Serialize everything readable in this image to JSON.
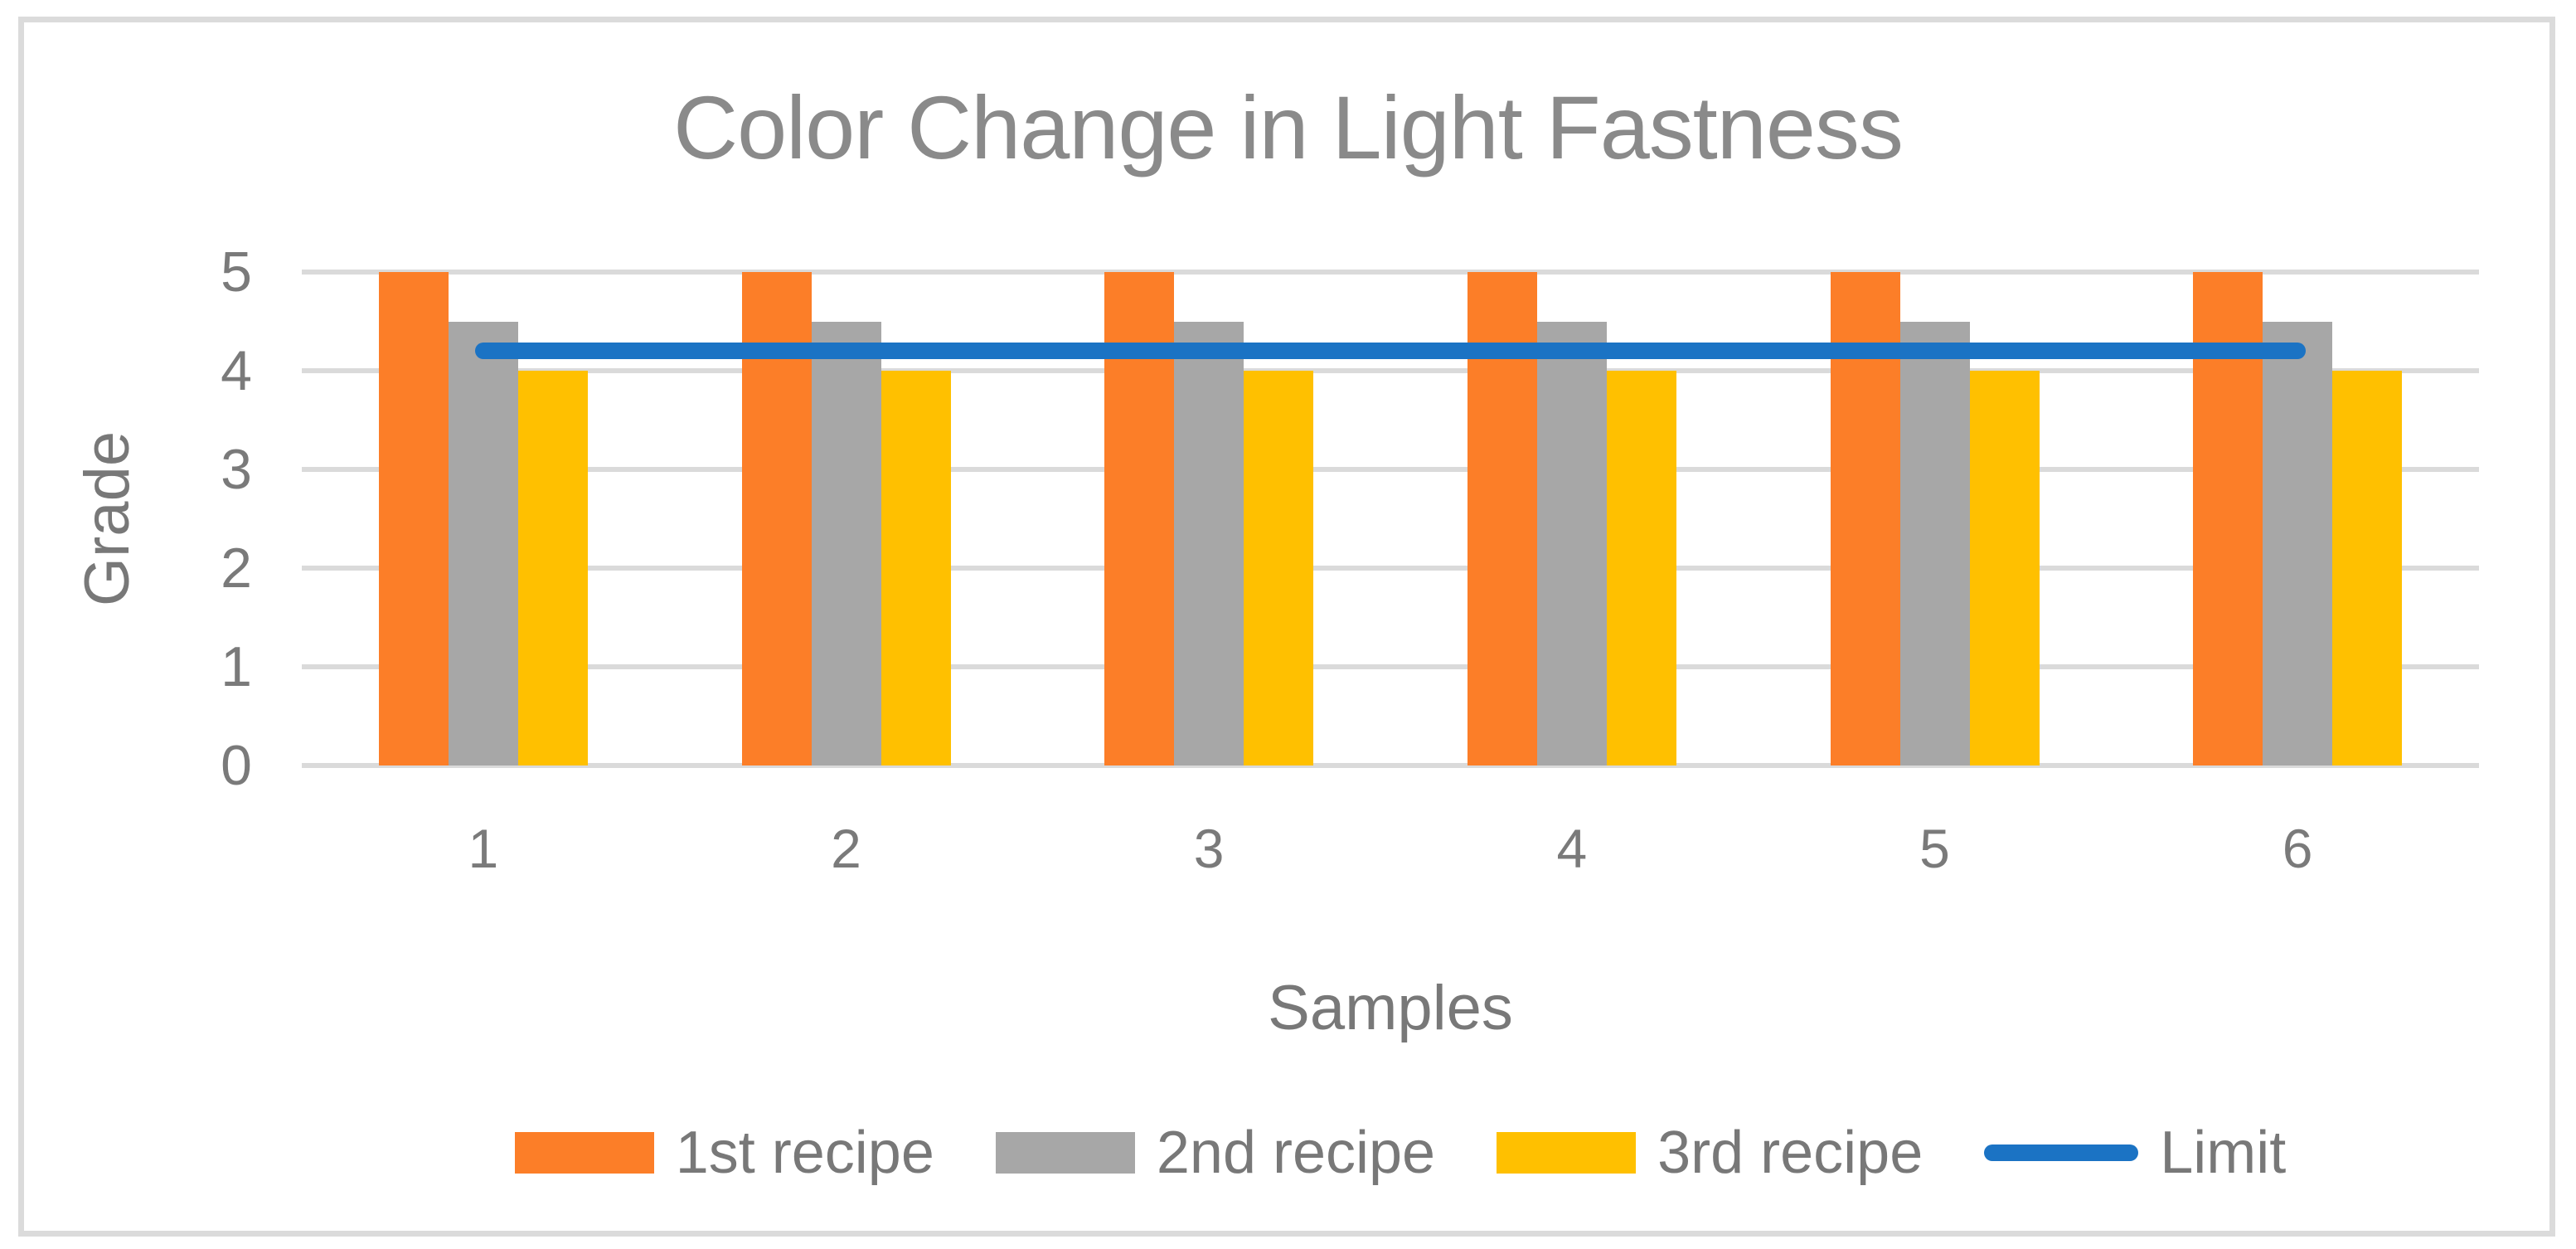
{
  "figure": {
    "title": "Color Change in Light Fastness",
    "x_axis_title": "Samples",
    "y_axis_title": "Grade"
  },
  "chart_data": {
    "type": "bar",
    "title": "Color Change in Light Fastness",
    "xlabel": "Samples",
    "ylabel": "Grade",
    "categories": [
      "1",
      "2",
      "3",
      "4",
      "5",
      "6"
    ],
    "series": [
      {
        "name": "1st recipe",
        "type": "bar",
        "color": "#fc7e28",
        "values": [
          5,
          5,
          5,
          5,
          5,
          5
        ]
      },
      {
        "name": "2nd recipe",
        "type": "bar",
        "color": "#a7a7a7",
        "values": [
          4.5,
          4.5,
          4.5,
          4.5,
          4.5,
          4.5
        ]
      },
      {
        "name": "3rd recipe",
        "type": "bar",
        "color": "#ffc000",
        "values": [
          4,
          4,
          4,
          4,
          4,
          4
        ]
      },
      {
        "name": "Limit",
        "type": "line",
        "color": "#1b73c4",
        "values": [
          4.2,
          4.2,
          4.2,
          4.2,
          4.2,
          4.2
        ]
      }
    ],
    "ylim": [
      0,
      5
    ],
    "yticks": [
      0,
      1,
      2,
      3,
      4,
      5
    ],
    "grid": true,
    "gridline_color": "#dadada",
    "legend_position": "bottom",
    "legend_entries": [
      "1st recipe",
      "2nd recipe",
      "3rd recipe",
      "Limit"
    ]
  }
}
